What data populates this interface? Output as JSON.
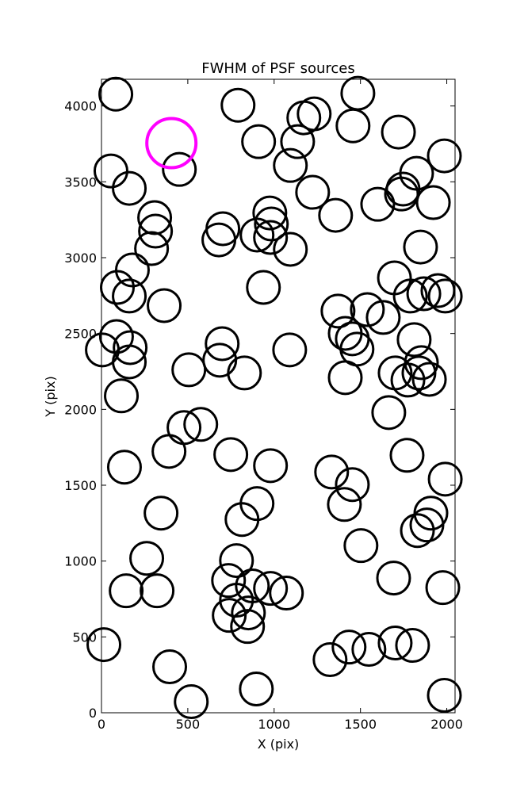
{
  "chart_data": {
    "type": "scatter",
    "title": "FWHM of PSF sources",
    "x_label": "X (pix)",
    "y_label": "Y (pix)",
    "xlim": [
      0,
      2048
    ],
    "ylim": [
      0,
      4176
    ],
    "xticks": [
      0,
      500,
      1000,
      1500,
      2000
    ],
    "yticks": [
      0,
      500,
      1000,
      1500,
      2000,
      2500,
      3000,
      3500,
      4000
    ],
    "series": [
      {
        "color": "#000000",
        "x": [
          83,
          791,
          1485,
          1172,
          1232,
          1457,
          1720,
          910,
          1136,
          1094,
          1986,
          1825,
          55,
          451,
          161,
          1223,
          1747,
          1738,
          1922,
          1600,
          1356,
          308,
          313,
          290,
          703,
          680,
          975,
          984,
          901,
          979,
          1094,
          1848,
          179,
          92,
          161,
          938,
          1697,
          1789,
          1867,
          1949,
          1991,
          363,
          1370,
          1540,
          1632,
          87,
          1412,
          1453,
          1480,
          1811,
          5,
          166,
          699,
          1090,
          161,
          1853,
          685,
          506,
          828,
          1701,
          1839,
          1775,
          1899,
          1412,
          115,
          1664,
          478,
          575,
          391,
          749,
          979,
          1770,
          133,
          1333,
          1453,
          1991,
          1407,
          901,
          814,
          345,
          1908,
          1885,
          1830,
          1503,
          262,
          782,
          1692,
          736,
          874,
          979,
          1071,
          1977,
          143,
          322,
          782,
          740,
          851,
          846,
          14,
          1701,
          1802,
          1434,
          1549,
          1324,
          395,
          897,
          520,
          1986
        ],
        "y": [
          4078,
          4005,
          4084,
          3922,
          3948,
          3869,
          3828,
          3765,
          3765,
          3608,
          3671,
          3556,
          3572,
          3582,
          3457,
          3431,
          3452,
          3420,
          3363,
          3352,
          3279,
          3264,
          3175,
          3060,
          3191,
          3117,
          3295,
          3222,
          3149,
          3133,
          3055,
          3070,
          2919,
          2804,
          2747,
          2804,
          2867,
          2747,
          2762,
          2783,
          2747,
          2684,
          2648,
          2658,
          2606,
          2480,
          2501,
          2465,
          2397,
          2460,
          2392,
          2407,
          2433,
          2392,
          2313,
          2308,
          2324,
          2261,
          2240,
          2240,
          2240,
          2193,
          2198,
          2209,
          2089,
          1979,
          1880,
          1901,
          1723,
          1702,
          1629,
          1697,
          1619,
          1587,
          1504,
          1540,
          1373,
          1379,
          1274,
          1316,
          1316,
          1238,
          1201,
          1102,
          1018,
          1003,
          888,
          872,
          836,
          820,
          789,
          825,
          804,
          804,
          742,
          642,
          658,
          569,
          449,
          460,
          444,
          433,
          418,
          350,
          303,
          157,
          73,
          115
        ]
      },
      {
        "color": "#ff00ff",
        "x": [
          405
        ],
        "y": [
          3755
        ]
      }
    ]
  }
}
